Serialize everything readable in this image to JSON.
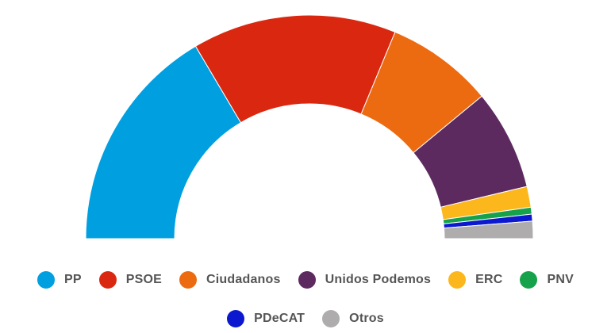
{
  "chart_data": {
    "type": "pie",
    "subtype": "semicircle-donut",
    "title": "",
    "categories": [
      "PP",
      "PSOE",
      "Ciudadanos",
      "Unidos Podemos",
      "ERC",
      "PNV",
      "PDeCAT",
      "Otros"
    ],
    "values": [
      66,
      59,
      31,
      29,
      6,
      2,
      2,
      5
    ],
    "colors": [
      "#009fe0",
      "#da2810",
      "#ec6b11",
      "#5d2a60",
      "#fbb71b",
      "#16a24b",
      "#0b18cf",
      "#aeacac"
    ],
    "legend": {
      "placement": "bottom",
      "items": [
        {
          "label": "PP",
          "color": "#009fe0"
        },
        {
          "label": "PSOE",
          "color": "#da2810"
        },
        {
          "label": "Ciudadanos",
          "color": "#ec6b11"
        },
        {
          "label": "Unidos Podemos",
          "color": "#5d2a60"
        },
        {
          "label": "ERC",
          "color": "#fbb71b"
        },
        {
          "label": "PNV",
          "color": "#16a24b"
        },
        {
          "label": "PDeCAT",
          "color": "#0b18cf"
        },
        {
          "label": "Otros",
          "color": "#aeacac"
        }
      ]
    }
  }
}
